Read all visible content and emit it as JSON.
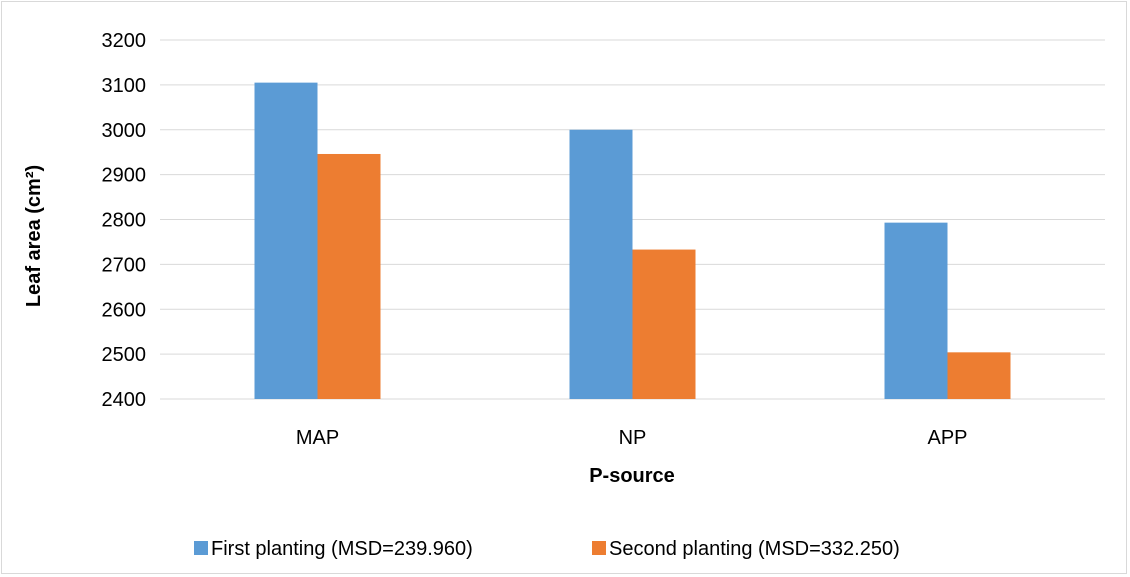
{
  "chart_data": {
    "type": "bar",
    "title": "",
    "xlabel": "P-source",
    "ylabel": "Leaf area (cm²)",
    "categories": [
      "MAP",
      "NP",
      "APP"
    ],
    "series": [
      {
        "name": "First planting (MSD=239.960)",
        "values": [
          3105,
          3000,
          2793
        ],
        "color": "#5b9bd5"
      },
      {
        "name": "Second planting (MSD=332.250)",
        "values": [
          2946,
          2733,
          2504
        ],
        "color": "#ed7d31"
      }
    ],
    "ylim": [
      2400,
      3200
    ],
    "yticks": [
      2400,
      2500,
      2600,
      2700,
      2800,
      2900,
      3000,
      3100,
      3200
    ],
    "grid": true,
    "legend_position": "bottom"
  }
}
